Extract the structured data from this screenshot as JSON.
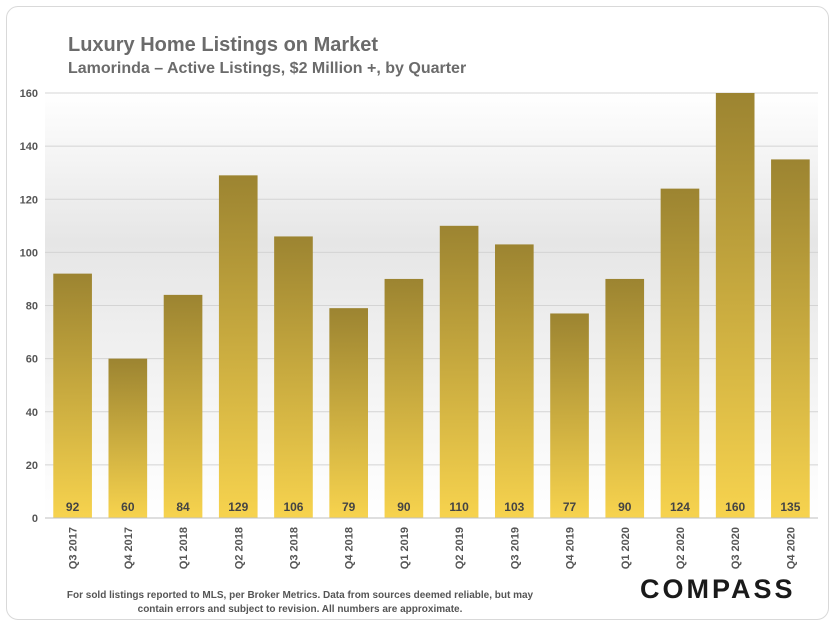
{
  "chart_data": {
    "type": "bar",
    "title": "Luxury Home Listings on Market",
    "subtitle": "Lamorinda – Active Listings, $2 Million +, by Quarter",
    "categories": [
      "Q3 2017",
      "Q4 2017",
      "Q1 2018",
      "Q2 2018",
      "Q3 2018",
      "Q4 2018",
      "Q1 2019",
      "Q2 2019",
      "Q3 2019",
      "Q4 2019",
      "Q1 2020",
      "Q2 2020",
      "Q3 2020",
      "Q4 2020"
    ],
    "values": [
      92,
      60,
      84,
      129,
      106,
      79,
      90,
      110,
      103,
      77,
      90,
      124,
      160,
      135
    ],
    "ylim": [
      0,
      160
    ],
    "yticks": [
      0,
      20,
      40,
      60,
      80,
      100,
      120,
      140,
      160
    ],
    "grid": true,
    "data_labels": true,
    "colors": {
      "bar_top": "#9c8431",
      "bar_bottom": "#f7d34e",
      "label": "#444444",
      "grid": "#d4d4d4"
    }
  },
  "footnote": {
    "line1": "For sold listings reported to MLS, per Broker Metrics. Data from sources deemed reliable, but may",
    "line2": "contain errors and subject to revision. All numbers are approximate."
  },
  "brand": {
    "logo_text": "COMPASS"
  }
}
